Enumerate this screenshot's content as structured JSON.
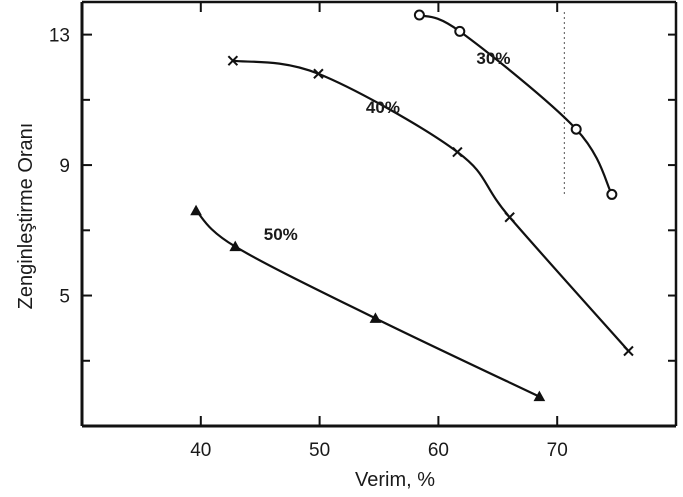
{
  "chart_data": {
    "type": "line",
    "title": "",
    "xlabel": "Verim, %",
    "ylabel": "Zenginleştirme Oranı",
    "xlim": [
      30,
      80
    ],
    "ylim": [
      1,
      14
    ],
    "x_ticks": [
      40,
      50,
      60,
      70
    ],
    "y_ticks": [
      5,
      9,
      13
    ],
    "grid": false,
    "series": [
      {
        "name": "30%",
        "marker": "circle",
        "points": [
          [
            58.4,
            13.6
          ],
          [
            61.8,
            13.1
          ],
          [
            71.6,
            10.1
          ],
          [
            74.6,
            8.1
          ]
        ]
      },
      {
        "name": "40%",
        "marker": "x",
        "points": [
          [
            42.7,
            12.2
          ],
          [
            49.9,
            11.8
          ],
          [
            61.6,
            9.4
          ],
          [
            66.0,
            7.4
          ],
          [
            76.0,
            3.3
          ]
        ]
      },
      {
        "name": "50%",
        "marker": "triangle",
        "points": [
          [
            39.6,
            7.6
          ],
          [
            42.9,
            6.5
          ],
          [
            54.7,
            4.3
          ],
          [
            68.5,
            1.9
          ]
        ]
      }
    ]
  }
}
